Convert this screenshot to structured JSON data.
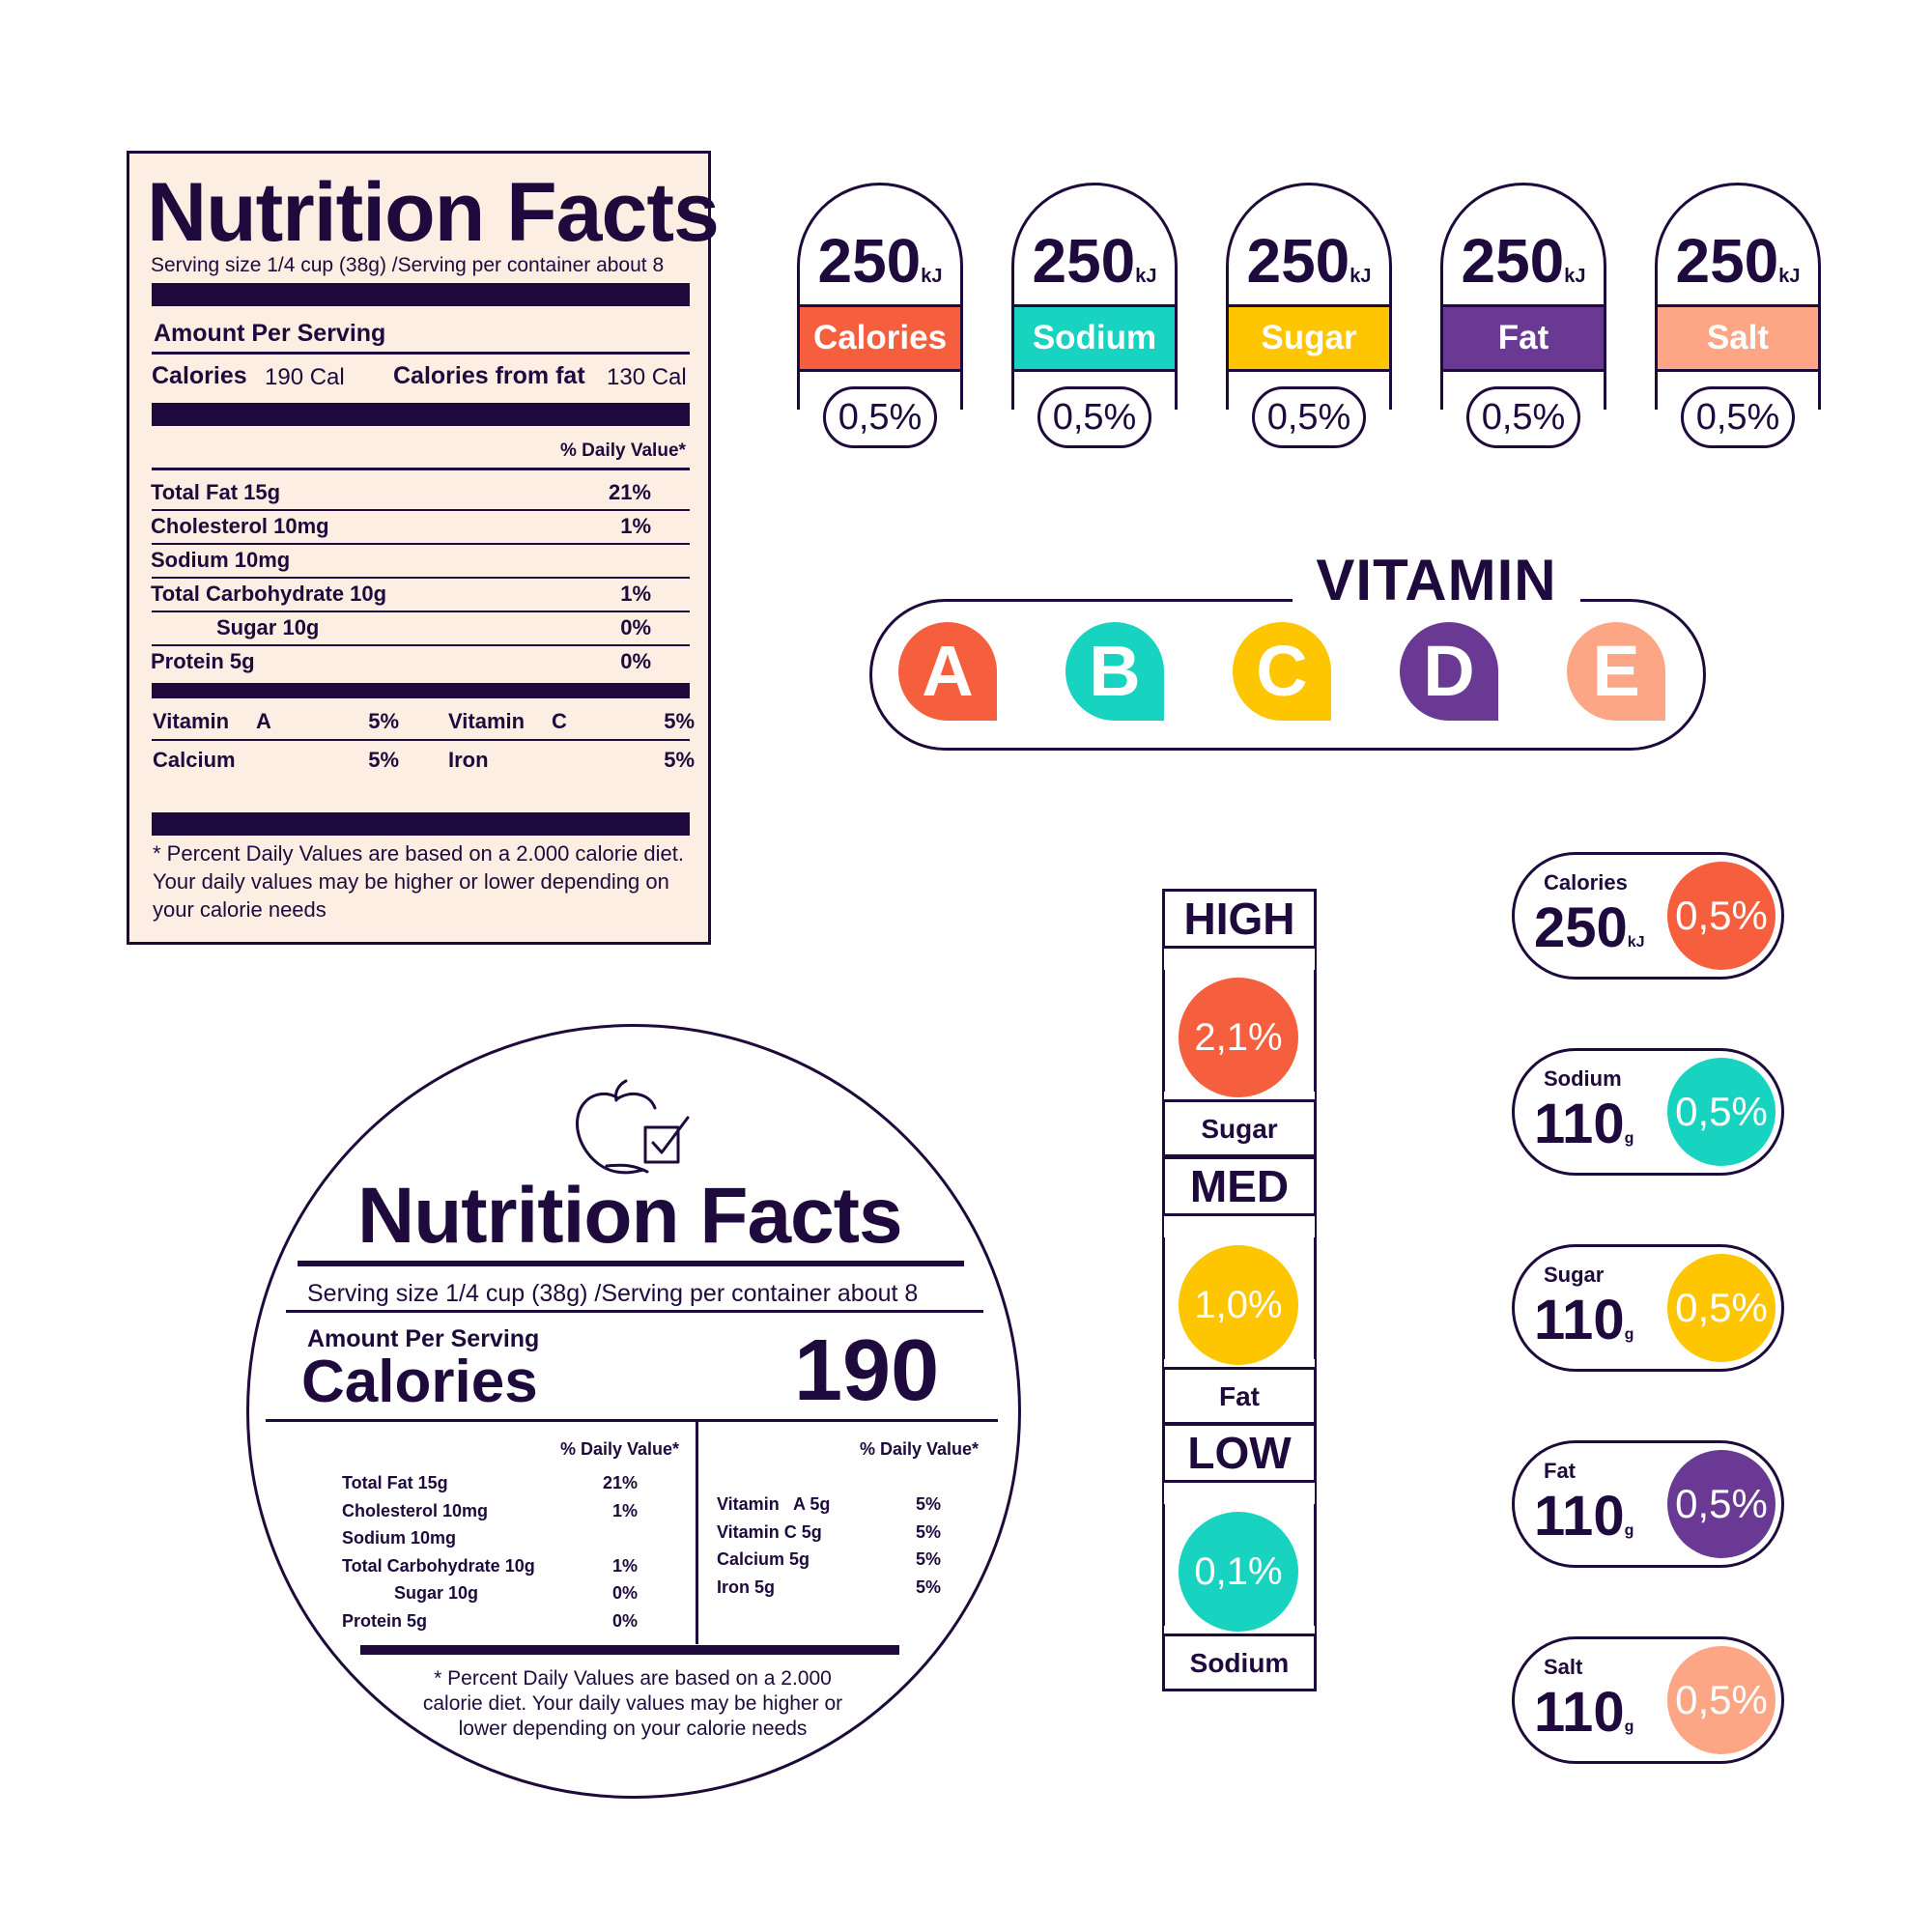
{
  "colors": {
    "ink": "#1e0a3c",
    "calories": "#f65f3e",
    "sodium": "#17d3bf",
    "sugar": "#fec501",
    "fat": "#6a3994",
    "salt": "#fca685",
    "label_bg": "#fdeee3"
  },
  "rect_label": {
    "title": "Nutrition Facts",
    "serving": "Serving size 1/4 cup (38g) /Serving per container about 8",
    "amount_per_serving": "Amount Per Serving",
    "calories_label": "Calories",
    "calories_value": "190 Cal",
    "calories_fat_label": "Calories from fat",
    "calories_fat_value": "130 Cal",
    "daily_value_header": "% Daily Value*",
    "nutrients": [
      {
        "name": "Total Fat 15g",
        "dv": "21%"
      },
      {
        "name": "Cholesterol 10mg",
        "dv": "1%"
      },
      {
        "name": "Sodium 10mg",
        "dv": ""
      },
      {
        "name": "Total Carbohydrate 10g",
        "dv": "1%"
      },
      {
        "name": "Sugar 10g",
        "dv": "0%"
      },
      {
        "name": "Protein 5g",
        "dv": "0%"
      }
    ],
    "vitamins": [
      {
        "a": "Vitamin",
        "b": "A",
        "c": "5%"
      },
      {
        "a": "Vitamin",
        "b": "C",
        "c": "5%"
      },
      {
        "a": "Calcium",
        "b": "",
        "c": "5%"
      },
      {
        "a": "Iron",
        "b": "",
        "c": "5%"
      }
    ],
    "footnote": "* Percent Daily Values are based on a 2.000 calorie diet. Your daily values may be higher or lower depending on your calorie needs"
  },
  "energy_badges": [
    {
      "value": "250",
      "unit": "kJ",
      "label": "Calories",
      "color": "#f65f3e",
      "pct": "0,5%"
    },
    {
      "value": "250",
      "unit": "kJ",
      "label": "Sodium",
      "color": "#17d3bf",
      "pct": "0,5%"
    },
    {
      "value": "250",
      "unit": "kJ",
      "label": "Sugar",
      "color": "#fec501",
      "pct": "0,5%"
    },
    {
      "value": "250",
      "unit": "kJ",
      "label": "Fat",
      "color": "#6a3994",
      "pct": "0,5%"
    },
    {
      "value": "250",
      "unit": "kJ",
      "label": "Salt",
      "color": "#fca685",
      "pct": "0,5%"
    }
  ],
  "vitamin": {
    "title": "VITAMIN",
    "letters": [
      {
        "letter": "A",
        "color": "#f65f3e"
      },
      {
        "letter": "B",
        "color": "#17d3bf"
      },
      {
        "letter": "C",
        "color": "#fec501"
      },
      {
        "letter": "D",
        "color": "#6a3994"
      },
      {
        "letter": "E",
        "color": "#fca685"
      }
    ]
  },
  "round_label": {
    "icon": "apple-check-icon",
    "title": "Nutrition Facts",
    "serving": "Serving size 1/4 cup (38g) /Serving per container about 8",
    "amount_per_serving": "Amount Per Serving",
    "calories_label": "Calories",
    "calories_value": "190",
    "daily_value_header": "% Daily Value*",
    "nutrients": [
      {
        "name": "Total Fat 15g",
        "dv": "21%"
      },
      {
        "name": "Cholesterol 10mg",
        "dv": "1%"
      },
      {
        "name": "Sodium 10mg",
        "dv": ""
      },
      {
        "name": "Total Carbohydrate 10g",
        "dv": "1%"
      },
      {
        "name": "Sugar 10g",
        "dv": "0%"
      },
      {
        "name": "Protein 5g",
        "dv": "0%"
      }
    ],
    "vitamins": [
      {
        "name": "Vitamin   A 5g",
        "dv": "5%"
      },
      {
        "name": "Vitamin C 5g",
        "dv": "5%"
      },
      {
        "name": "Calcium 5g",
        "dv": "5%"
      },
      {
        "name": "Iron 5g",
        "dv": "5%"
      }
    ],
    "footnote": "* Percent Daily Values are based on a 2.000 calorie diet. Your daily values may be higher or lower depending on your calorie needs"
  },
  "traffic_light": [
    {
      "level": "HIGH",
      "pct": "2,1%",
      "nutrient": "Sugar",
      "color": "#f65f3e"
    },
    {
      "level": "MED",
      "pct": "1,0%",
      "nutrient": "Fat",
      "color": "#fec501"
    },
    {
      "level": "LOW",
      "pct": "0,1%",
      "nutrient": "Sodium",
      "color": "#17d3bf"
    }
  ],
  "pill_badges": [
    {
      "label": "Calories",
      "value": "250",
      "unit": "kJ",
      "pct": "0,5%",
      "color": "#f65f3e"
    },
    {
      "label": "Sodium",
      "value": "110",
      "unit": "g",
      "pct": "0,5%",
      "color": "#17d3bf"
    },
    {
      "label": "Sugar",
      "value": "110",
      "unit": "g",
      "pct": "0,5%",
      "color": "#fec501"
    },
    {
      "label": "Fat",
      "value": "110",
      "unit": "g",
      "pct": "0,5%",
      "color": "#6a3994"
    },
    {
      "label": "Salt",
      "value": "110",
      "unit": "g",
      "pct": "0,5%",
      "color": "#fca685"
    }
  ]
}
